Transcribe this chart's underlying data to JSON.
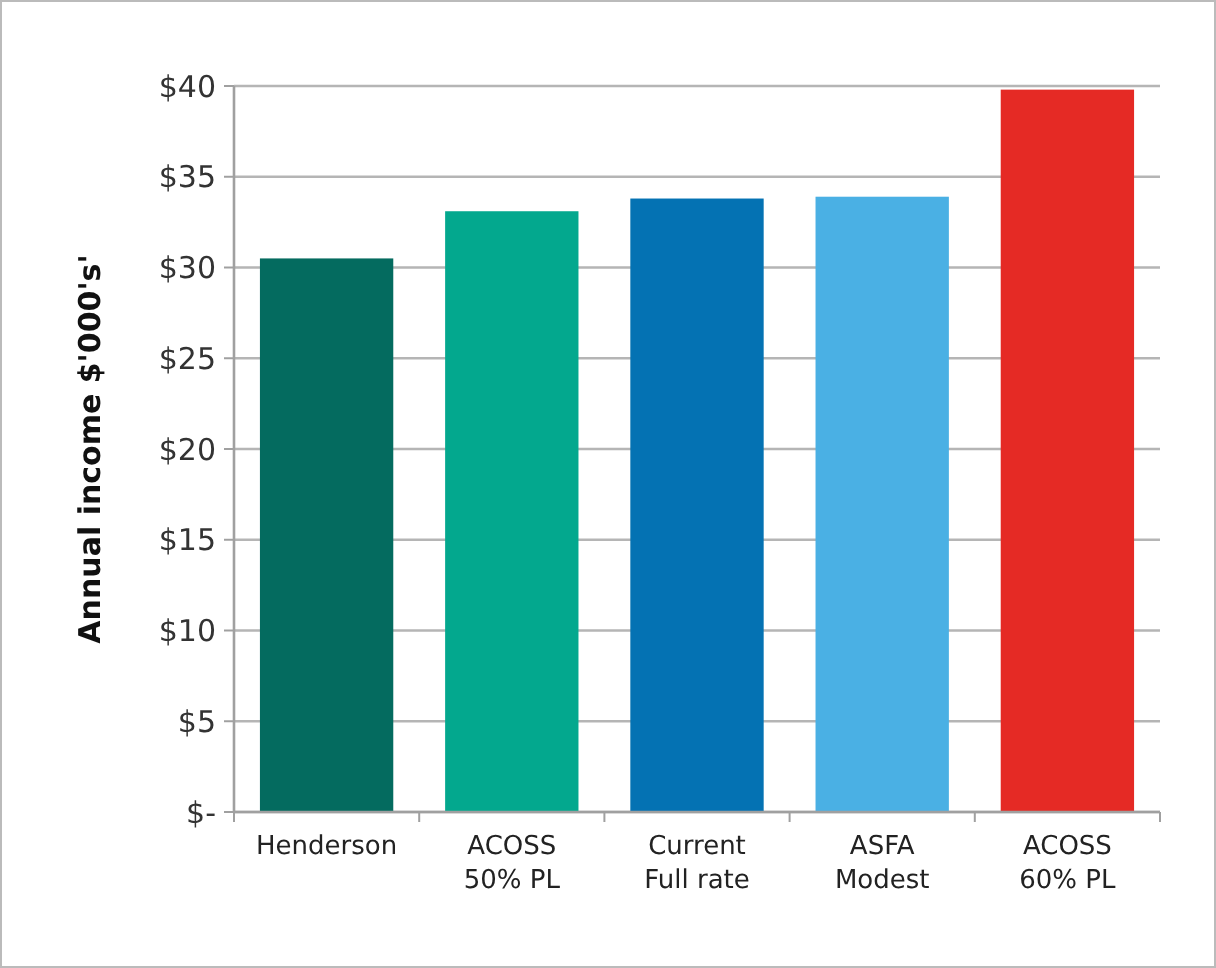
{
  "chart_data": {
    "type": "bar",
    "ylabel": "Annual income $'000's'",
    "categories": [
      "Henderson",
      "ACOSS 50% PL",
      "Current Full rate",
      "ASFA Modest",
      "ACOSS 60% PL"
    ],
    "values": [
      30.5,
      33.1,
      33.8,
      33.9,
      39.8
    ],
    "colors": [
      "#046b5f",
      "#03a88e",
      "#0472b3",
      "#4ab0e4",
      "#e52a25"
    ],
    "ylim": [
      0,
      40
    ],
    "yticks": [
      {
        "value": 0,
        "label": "$-"
      },
      {
        "value": 5,
        "label": "$5"
      },
      {
        "value": 10,
        "label": "$10"
      },
      {
        "value": 15,
        "label": "$15"
      },
      {
        "value": 20,
        "label": "$20"
      },
      {
        "value": 25,
        "label": "$25"
      },
      {
        "value": 30,
        "label": "$30"
      },
      {
        "value": 35,
        "label": "$35"
      },
      {
        "value": 40,
        "label": "$40"
      }
    ],
    "grid": "y"
  }
}
